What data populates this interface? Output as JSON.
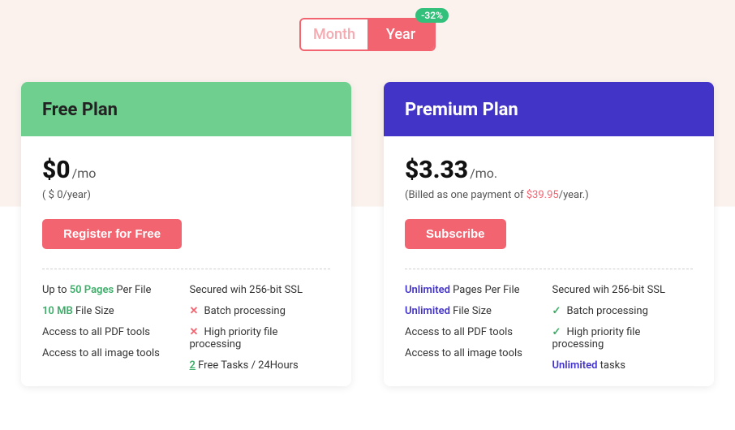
{
  "colors": {
    "accent_red": "#f36471",
    "green_header": "#6ecf8e",
    "blue_header": "#4334c8",
    "badge_green": "#33c07a",
    "text_green": "#3fae6a",
    "bg_top": "#fbf2ee",
    "bg_bottom": "#ffffff"
  },
  "toggle": {
    "month": "Month",
    "year": "Year",
    "active": "year",
    "discount": "-32%"
  },
  "plans": {
    "free": {
      "title": "Free Plan",
      "price": "$0",
      "per": "/mo",
      "sub": "( $ 0/year)",
      "cta": "Register for Free",
      "left": {
        "f1_pre": "Up to ",
        "f1_hl": "50 Pages",
        "f1_post": " Per File",
        "f2_hl": "10 MB",
        "f2_post": " File Size",
        "f3": "Access to all PDF tools",
        "f4": "Access to all image tools"
      },
      "right": {
        "f1": "Secured wih 256-bit SSL",
        "f2": "Batch processing",
        "f3": "High priority file processing",
        "f4_hl": "2",
        "f4_post": " Free Tasks / 24Hours"
      }
    },
    "premium": {
      "title": "Premium Plan",
      "price": "$3.33",
      "per": "/mo.",
      "sub_pre": " (Billed as one payment of ",
      "sub_amount": "$39.95",
      "sub_post": "/year.)",
      "cta": "Subscribe",
      "left": {
        "f1_hl": "Unlimited",
        "f1_post": " Pages Per File",
        "f2_hl": "Unlimited",
        "f2_post": " File Size",
        "f3": "Access to all PDF tools",
        "f4": "Access to all image tools"
      },
      "right": {
        "f1": "Secured wih 256-bit SSL",
        "f2": "Batch processing",
        "f3": "High priority file processing",
        "f4_hl": "Unlimited",
        "f4_post": " tasks"
      }
    }
  }
}
